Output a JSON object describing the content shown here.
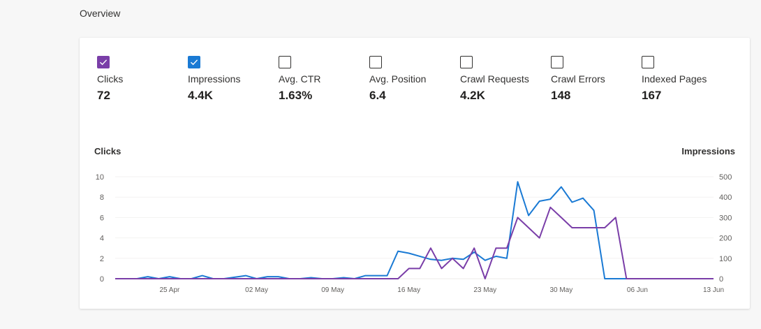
{
  "header": {
    "title": "Overview"
  },
  "metrics": [
    {
      "label": "Clicks",
      "value": "72",
      "checked": true,
      "color": "#7a3ea8"
    },
    {
      "label": "Impressions",
      "value": "4.4K",
      "checked": true,
      "color": "#1a7ad4"
    },
    {
      "label": "Avg. CTR",
      "value": "1.63%",
      "checked": false
    },
    {
      "label": "Avg. Position",
      "value": "6.4",
      "checked": false
    },
    {
      "label": "Crawl Requests",
      "value": "4.2K",
      "checked": false
    },
    {
      "label": "Crawl Errors",
      "value": "148",
      "checked": false
    },
    {
      "label": "Indexed Pages",
      "value": "167",
      "checked": false
    }
  ],
  "chart_data": {
    "type": "line",
    "left_axis_label": "Clicks",
    "right_axis_label": "Impressions",
    "ylim_left": [
      0,
      10
    ],
    "ylim_right": [
      0,
      500
    ],
    "yticks_left": [
      "10",
      "8",
      "6",
      "4",
      "2",
      "0"
    ],
    "yticks_right": [
      "500",
      "400",
      "300",
      "200",
      "100",
      "0"
    ],
    "x_range": [
      "2024-04-20",
      "2024-06-13"
    ],
    "x": [
      "04-20",
      "04-21",
      "04-22",
      "04-23",
      "04-24",
      "04-25",
      "04-26",
      "04-27",
      "04-28",
      "04-29",
      "04-30",
      "05-01",
      "05-02",
      "05-03",
      "05-04",
      "05-05",
      "05-06",
      "05-07",
      "05-08",
      "05-09",
      "05-10",
      "05-11",
      "05-12",
      "05-13",
      "05-14",
      "05-15",
      "05-16",
      "05-17",
      "05-18",
      "05-19",
      "05-20",
      "05-21",
      "05-22",
      "05-23",
      "05-24",
      "05-25",
      "05-26",
      "05-27",
      "05-28",
      "05-29",
      "05-30",
      "05-31",
      "06-01",
      "06-02",
      "06-03",
      "06-04",
      "06-05",
      "06-06",
      "06-07",
      "06-08",
      "06-09",
      "06-10",
      "06-11",
      "06-12",
      "06-13"
    ],
    "xtick_labels": [
      "25 Apr",
      "02 May",
      "09 May",
      "16 May",
      "23 May",
      "30 May",
      "06 Jun",
      "13 Jun"
    ],
    "grid": true,
    "series": [
      {
        "name": "Clicks",
        "axis": "left",
        "color": "#7a3ea8",
        "values": [
          0,
          0,
          0,
          0,
          0,
          0,
          0,
          0,
          0,
          0,
          0,
          0,
          0,
          0,
          0,
          0,
          0,
          0,
          0,
          0,
          0,
          0,
          0,
          0,
          0,
          0,
          1,
          1,
          3,
          1,
          2,
          1,
          3,
          0,
          3,
          3,
          6,
          5,
          4,
          7,
          6,
          5,
          5,
          5,
          5,
          6,
          0,
          0,
          0,
          0,
          0,
          0,
          0,
          0,
          0
        ]
      },
      {
        "name": "Impressions",
        "axis": "right",
        "color": "#1a7ad4",
        "values": [
          0,
          0,
          0,
          10,
          0,
          10,
          0,
          0,
          15,
          0,
          0,
          15,
          0,
          10,
          10,
          0,
          0,
          5,
          0,
          0,
          5,
          0,
          15,
          15,
          15,
          135,
          125,
          110,
          95,
          90,
          100,
          95,
          130,
          90,
          110,
          100,
          475,
          310,
          380,
          390,
          450,
          375,
          395,
          335,
          0,
          0,
          0,
          0,
          0,
          0,
          0,
          0,
          0,
          0,
          0
        ]
      }
    ]
  }
}
